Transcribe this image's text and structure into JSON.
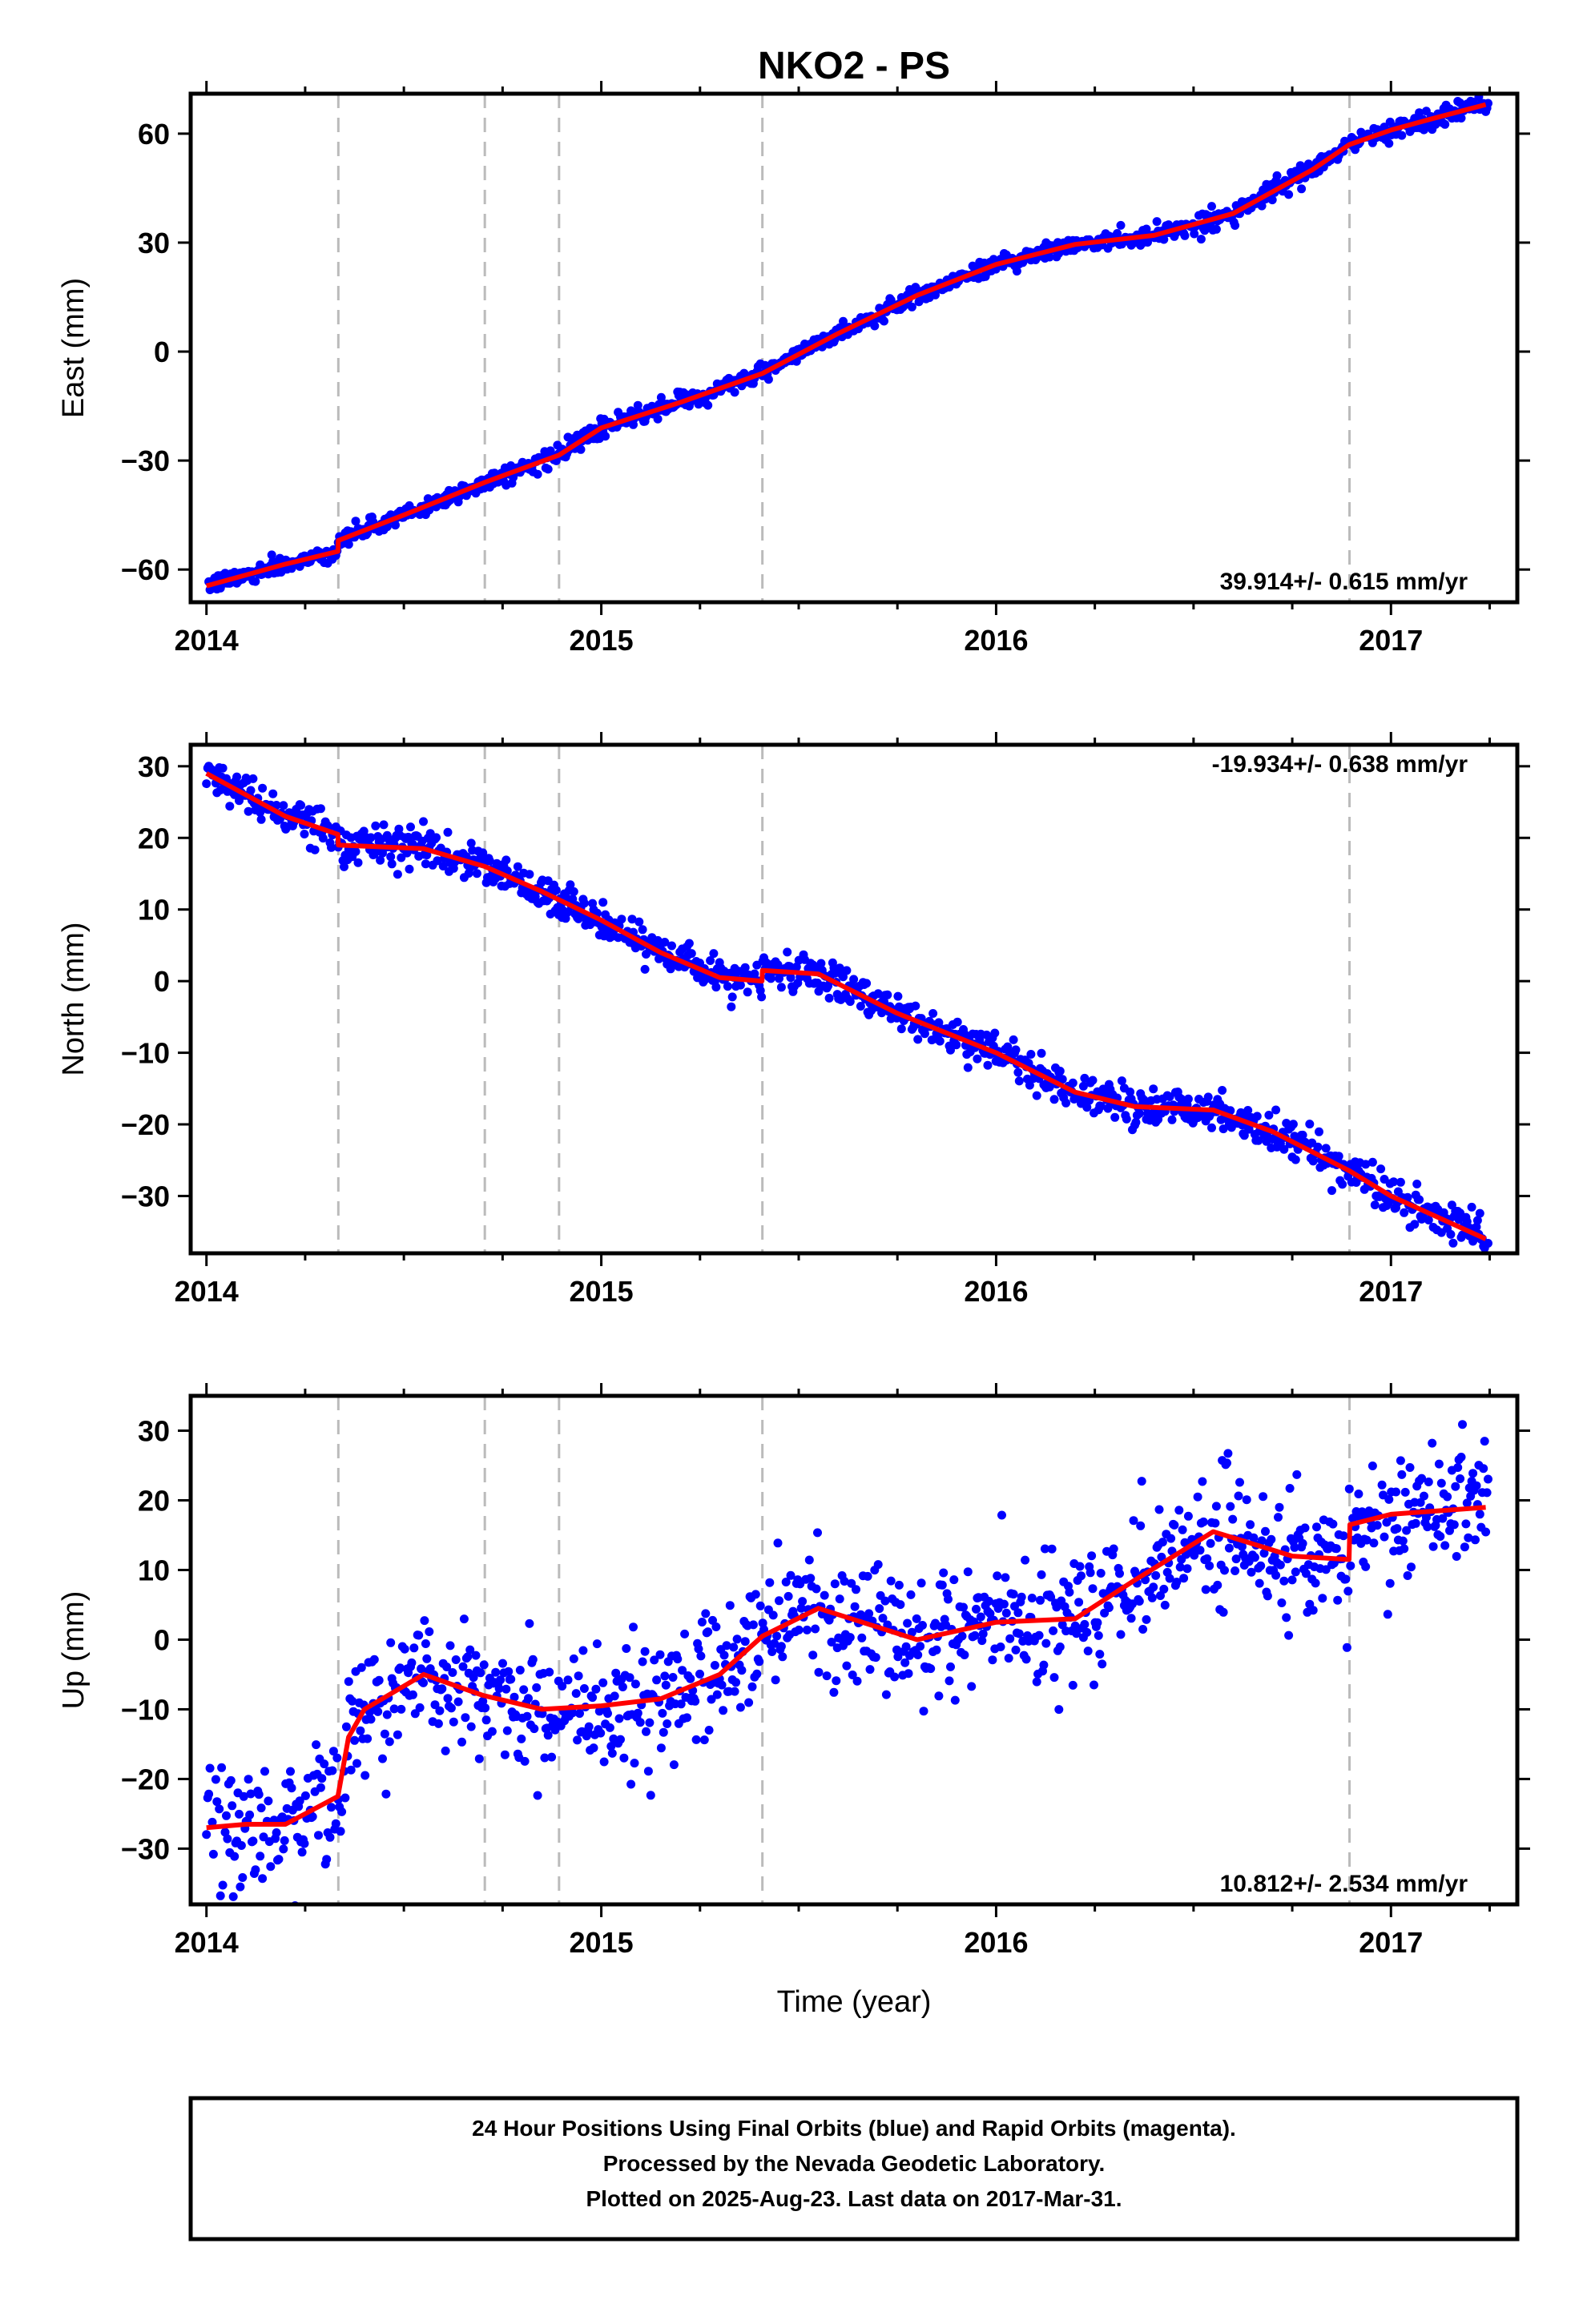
{
  "chart_data": [
    {
      "type": "scatter",
      "title": "NKO2 - PS",
      "ylabel": "East (mm)",
      "xlabel": "",
      "xlim": [
        2013.96,
        2017.32
      ],
      "ylim": [
        -69,
        71
      ],
      "xticks": [
        2014,
        2015,
        2016,
        2017
      ],
      "yticks": [
        -60,
        -30,
        0,
        30,
        60
      ],
      "rate_label": "39.914+/- 0.615 mm/yr",
      "rate_position": "bottom-right",
      "grid": false,
      "events": [
        2014.334,
        2014.705,
        2014.893,
        2015.408,
        2016.895
      ],
      "model_knots": {
        "x": [
          2014.0,
          2014.1,
          2014.2,
          2014.333,
          2014.334,
          2014.5,
          2014.705,
          2014.893,
          2015.0,
          2015.2,
          2015.408,
          2015.6,
          2015.8,
          2016.0,
          2016.2,
          2016.4,
          2016.6,
          2016.8,
          2016.895,
          2017.0,
          2017.1,
          2017.24
        ],
        "y": [
          -64.5,
          -61.5,
          -58.5,
          -55.0,
          -52.0,
          -45.0,
          -36.0,
          -28.5,
          -21.0,
          -14.0,
          -6.0,
          5.0,
          15.5,
          24.0,
          29.5,
          32.0,
          38.0,
          50.0,
          57.0,
          61.0,
          64.0,
          68.0
        ]
      },
      "noise_mm": 1.2,
      "series": [
        {
          "name": "Final Orbits",
          "color": "#0000ff",
          "x_start": 2014.0,
          "x_end": 2017.246
        },
        {
          "name": "model",
          "color": "#ff0000"
        }
      ]
    },
    {
      "type": "scatter",
      "title": "",
      "ylabel": "North (mm)",
      "xlabel": "",
      "xlim": [
        2013.96,
        2017.32
      ],
      "ylim": [
        -38,
        33
      ],
      "xticks": [
        2014,
        2015,
        2016,
        2017
      ],
      "yticks": [
        -30,
        -20,
        -10,
        0,
        10,
        20,
        30
      ],
      "rate_label": "-19.934+/- 0.638 mm/yr",
      "rate_position": "top-right",
      "grid": false,
      "events": [
        2014.334,
        2014.705,
        2014.893,
        2015.408,
        2016.895
      ],
      "model_knots": {
        "x": [
          2014.0,
          2014.2,
          2014.333,
          2014.334,
          2014.55,
          2014.705,
          2014.85,
          2015.0,
          2015.15,
          2015.3,
          2015.407,
          2015.408,
          2015.55,
          2015.75,
          2016.0,
          2016.2,
          2016.35,
          2016.55,
          2016.7,
          2016.895,
          2017.0,
          2017.24
        ],
        "y": [
          29.0,
          23.0,
          20.5,
          19.0,
          18.5,
          16.0,
          12.5,
          8.5,
          4.0,
          0.5,
          0.0,
          1.5,
          1.0,
          -4.5,
          -10.0,
          -15.5,
          -17.5,
          -18.0,
          -21.0,
          -26.5,
          -30.0,
          -36.0
        ]
      },
      "noise_mm": 1.3,
      "series": [
        {
          "name": "Final Orbits",
          "color": "#0000ff",
          "x_start": 2014.0,
          "x_end": 2017.246
        },
        {
          "name": "model",
          "color": "#ff0000"
        }
      ]
    },
    {
      "type": "scatter",
      "title": "",
      "ylabel": "Up (mm)",
      "xlabel": "Time (year)",
      "xlim": [
        2013.96,
        2017.32
      ],
      "ylim": [
        -38,
        35
      ],
      "xticks": [
        2014,
        2015,
        2016,
        2017
      ],
      "yticks": [
        -30,
        -20,
        -10,
        0,
        10,
        20,
        30
      ],
      "rate_label": "10.812+/- 2.534 mm/yr",
      "rate_position": "bottom-right",
      "grid": false,
      "events": [
        2014.334,
        2014.705,
        2014.893,
        2015.408,
        2016.895
      ],
      "model_knots": {
        "x": [
          2014.0,
          2014.1,
          2014.2,
          2014.333,
          2014.36,
          2014.4,
          2014.55,
          2014.7,
          2014.85,
          2015.0,
          2015.15,
          2015.3,
          2015.408,
          2015.55,
          2015.8,
          2016.0,
          2016.2,
          2016.35,
          2016.55,
          2016.75,
          2016.894,
          2016.896,
          2017.0,
          2017.24
        ],
        "y": [
          -27.0,
          -26.5,
          -26.5,
          -22.5,
          -14.0,
          -10.0,
          -5.0,
          -8.0,
          -10.0,
          -9.5,
          -8.5,
          -5.0,
          0.5,
          4.5,
          0.0,
          2.5,
          3.0,
          8.5,
          15.5,
          12.0,
          11.5,
          16.5,
          18.0,
          19.0
        ]
      },
      "noise_mm": 4.5,
      "series": [
        {
          "name": "Final Orbits",
          "color": "#0000ff",
          "x_start": 2014.0,
          "x_end": 2017.246
        },
        {
          "name": "model",
          "color": "#ff0000"
        }
      ]
    }
  ],
  "footer": {
    "line1": "24 Hour Positions Using Final Orbits (blue) and Rapid Orbits (magenta).",
    "line2": "Processed by the Nevada Geodetic Laboratory.",
    "line3": "Plotted on 2025-Aug-23. Last data on 2017-Mar-31."
  },
  "colors": {
    "data": "#0000ff",
    "model": "#ff0000",
    "event_line": "#bbbbbb",
    "frame": "#000000"
  }
}
